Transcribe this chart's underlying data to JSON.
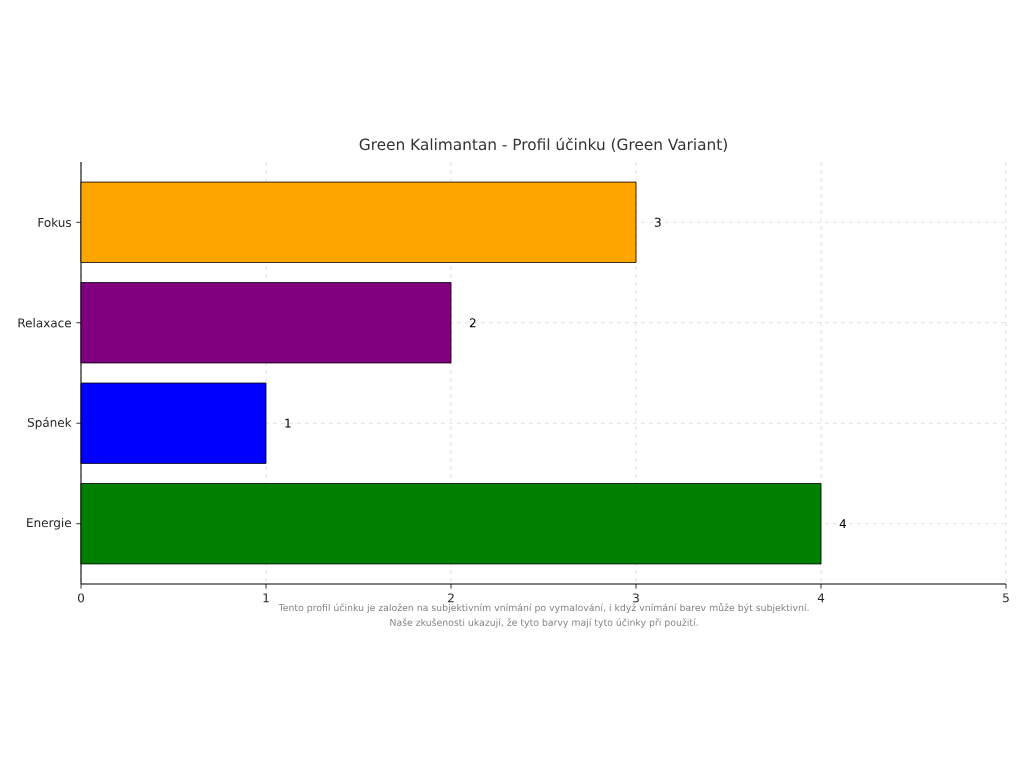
{
  "chart_data": {
    "type": "bar",
    "orientation": "horizontal",
    "title": "Green Kalimantan - Profil účinku (Green Variant)",
    "categories": [
      "Fokus",
      "Relaxace",
      "Spánek",
      "Energie"
    ],
    "values": [
      3,
      2,
      1,
      4
    ],
    "colors": [
      "#ffa500",
      "#800080",
      "#0000ff",
      "#008000"
    ],
    "xlim": [
      0,
      5
    ],
    "xticks": [
      0,
      1,
      2,
      3,
      4,
      5
    ],
    "grid": true,
    "data_labels": true,
    "annotations": [
      "Tento profil účinku je založen na subjektivním vnímání po vymalování, i když vnímání barev může být subjektivní.",
      "Naše zkušenosti ukazují, že tyto barvy mají tyto účinky při použití."
    ]
  }
}
